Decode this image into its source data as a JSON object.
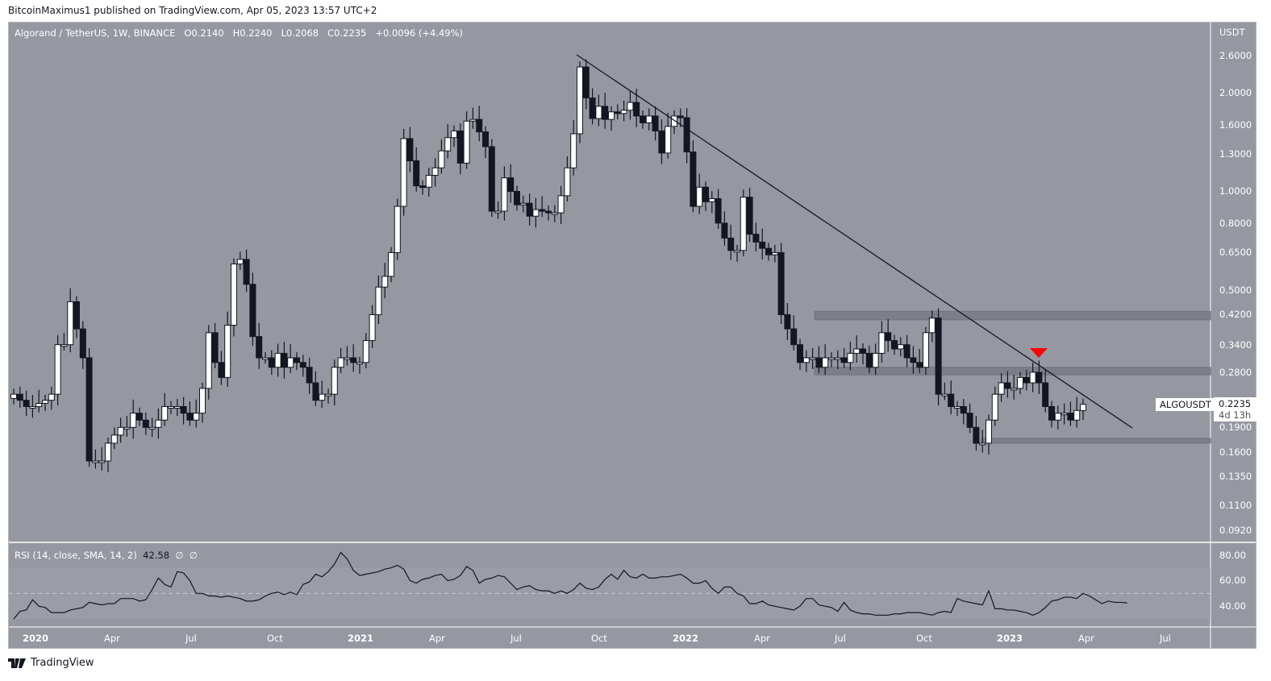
{
  "header": {
    "published": "BitcoinMaximus1 published on TradingView.com, Apr 05, 2023 13:57 UTC+2"
  },
  "legend": {
    "symbol": "Algorand / TetherUS, 1W, BINANCE",
    "open": "O0.2140",
    "high": "H0.2240",
    "low": "L0.2068",
    "close": "C0.2235",
    "change": "+0.0096 (+4.49%)"
  },
  "price_axis": {
    "currency": "USDT",
    "ticks": [
      "2.6000",
      "2.0000",
      "1.6000",
      "1.3000",
      "1.0000",
      "0.8000",
      "0.6500",
      "0.5000",
      "0.4200",
      "0.3400",
      "0.2800",
      "0.1900",
      "0.1600",
      "0.1350",
      "0.1100",
      "0.0920"
    ]
  },
  "last_price": {
    "symbol": "ALGOUSDT",
    "price": "0.2235",
    "countdown": "4d 13h"
  },
  "rsi": {
    "label": "RSI (14, close, SMA, 14, 2)",
    "value": "42.58",
    "extra1": "∅",
    "extra2": "∅",
    "ticks": [
      "80.00",
      "60.00",
      "40.00"
    ]
  },
  "time_axis": {
    "ticks": [
      "2020",
      "Apr",
      "Jul",
      "Oct",
      "2021",
      "Apr",
      "Jul",
      "Oct",
      "2022",
      "Apr",
      "Jul",
      "Oct",
      "2023",
      "Apr",
      "Jul"
    ]
  },
  "footer": {
    "brand": "TradingView"
  },
  "colors": {
    "background": "#9598a1",
    "up_candle": "#ffffff",
    "down_candle": "#131722",
    "trendline": "#131722",
    "zone": "#787b86",
    "signal_arrow": "#ff0000"
  },
  "chart_data": [
    {
      "type": "candlestick",
      "title": "Algorand / TetherUS, 1W, BINANCE",
      "ylabel": "USDT",
      "yscale": "log",
      "ylim": [
        0.085,
        2.9
      ],
      "x_ticks": [
        "2020",
        "Apr",
        "Jul",
        "Oct",
        "2021",
        "Apr",
        "Jul",
        "Oct",
        "2022",
        "Apr",
        "Jul",
        "Oct",
        "2023",
        "Apr",
        "Jul"
      ],
      "y_ticks": [
        2.6,
        2.0,
        1.6,
        1.3,
        1.0,
        0.8,
        0.65,
        0.5,
        0.42,
        0.34,
        0.28,
        0.19,
        0.16,
        0.135,
        0.11,
        0.092
      ],
      "last": {
        "open": 0.214,
        "high": 0.224,
        "low": 0.2068,
        "close": 0.2235,
        "change": 0.0096,
        "change_pct": 4.49
      },
      "weekly_closes": [
        0.24,
        0.23,
        0.22,
        0.22,
        0.225,
        0.23,
        0.24,
        0.34,
        0.34,
        0.46,
        0.38,
        0.31,
        0.15,
        0.15,
        0.15,
        0.17,
        0.18,
        0.19,
        0.19,
        0.21,
        0.2,
        0.19,
        0.19,
        0.2,
        0.22,
        0.22,
        0.22,
        0.21,
        0.2,
        0.21,
        0.25,
        0.37,
        0.3,
        0.27,
        0.39,
        0.6,
        0.62,
        0.52,
        0.36,
        0.31,
        0.31,
        0.29,
        0.32,
        0.29,
        0.31,
        0.3,
        0.29,
        0.26,
        0.23,
        0.24,
        0.24,
        0.29,
        0.31,
        0.31,
        0.3,
        0.3,
        0.35,
        0.42,
        0.51,
        0.55,
        0.65,
        0.9,
        1.45,
        1.24,
        1.04,
        1.03,
        1.12,
        1.18,
        1.33,
        1.46,
        1.53,
        1.22,
        1.64,
        1.66,
        1.52,
        1.37,
        0.87,
        0.87,
        1.1,
        1.0,
        0.91,
        0.92,
        0.84,
        0.88,
        0.87,
        0.86,
        0.86,
        0.97,
        1.18,
        1.5,
        2.4,
        1.93,
        1.67,
        1.82,
        1.66,
        1.75,
        1.73,
        1.77,
        1.87,
        1.7,
        1.62,
        1.7,
        1.53,
        1.31,
        1.58,
        1.7,
        1.68,
        1.32,
        0.9,
        1.03,
        0.93,
        0.95,
        0.8,
        0.72,
        0.66,
        0.66,
        0.96,
        0.74,
        0.7,
        0.67,
        0.64,
        0.65,
        0.42,
        0.38,
        0.34,
        0.3,
        0.31,
        0.31,
        0.29,
        0.31,
        0.31,
        0.31,
        0.3,
        0.32,
        0.33,
        0.32,
        0.29,
        0.32,
        0.37,
        0.35,
        0.33,
        0.34,
        0.31,
        0.3,
        0.29,
        0.37,
        0.41,
        0.24,
        0.24,
        0.22,
        0.22,
        0.21,
        0.19,
        0.17,
        0.17,
        0.2,
        0.24,
        0.26,
        0.25,
        0.25,
        0.27,
        0.26,
        0.28,
        0.26,
        0.22,
        0.2,
        0.21,
        0.21,
        0.2,
        0.214,
        0.2235
      ],
      "trendline": {
        "from": {
          "date": "2021-09",
          "price": 2.6
        },
        "to": {
          "date": "2023-05",
          "price": 0.185
        }
      },
      "zones": [
        {
          "name": "resistance-upper",
          "low": 0.405,
          "high": 0.43
        },
        {
          "name": "resistance-lower",
          "low": 0.275,
          "high": 0.29
        },
        {
          "name": "support",
          "low": 0.17,
          "high": 0.176
        }
      ],
      "annotations": [
        {
          "type": "arrow-down",
          "color": "#ff0000",
          "date": "2023-02",
          "price": 0.325
        }
      ]
    },
    {
      "type": "line",
      "title": "RSI (14, close, SMA, 14, 2)",
      "ylim": [
        25,
        90
      ],
      "y_ticks": [
        80,
        60,
        40
      ],
      "bands": {
        "upper": 70,
        "middle": 50,
        "lower": 30
      },
      "last_value": 42.58,
      "values": [
        30,
        36,
        37,
        45,
        40,
        39,
        35,
        35,
        35,
        37,
        38,
        39,
        43,
        42,
        41,
        42,
        42,
        46,
        46,
        46,
        44,
        45,
        53,
        62,
        57,
        55,
        67,
        66,
        60,
        50,
        50,
        48,
        48,
        47,
        48,
        47,
        46,
        44,
        44,
        45,
        48,
        50,
        51,
        49,
        51,
        49,
        57,
        59,
        65,
        63,
        67,
        73,
        82,
        77,
        68,
        64,
        65,
        66,
        67,
        69,
        70,
        72,
        69,
        60,
        58,
        61,
        62,
        64,
        65,
        60,
        61,
        64,
        71,
        68,
        58,
        61,
        62,
        64,
        63,
        58,
        53,
        55,
        56,
        53,
        52,
        52,
        50,
        52,
        50,
        53,
        58,
        54,
        53,
        55,
        61,
        65,
        61,
        68,
        63,
        62,
        65,
        62,
        62,
        63,
        63,
        64,
        65,
        62,
        58,
        58,
        60,
        54,
        50,
        55,
        55,
        50,
        48,
        42,
        42,
        44,
        41,
        40,
        39,
        38,
        37,
        40,
        46,
        46,
        41,
        40,
        39,
        36,
        43,
        37,
        35,
        34,
        34,
        33,
        33,
        33,
        34,
        34,
        35,
        35,
        35,
        34,
        33,
        35,
        36,
        35,
        46,
        44,
        43,
        42,
        41,
        52,
        38,
        38,
        37,
        37,
        36,
        35,
        33,
        35,
        39,
        44,
        45,
        47,
        47,
        46,
        50,
        48,
        45,
        42,
        44,
        43,
        43,
        42.58
      ]
    }
  ]
}
